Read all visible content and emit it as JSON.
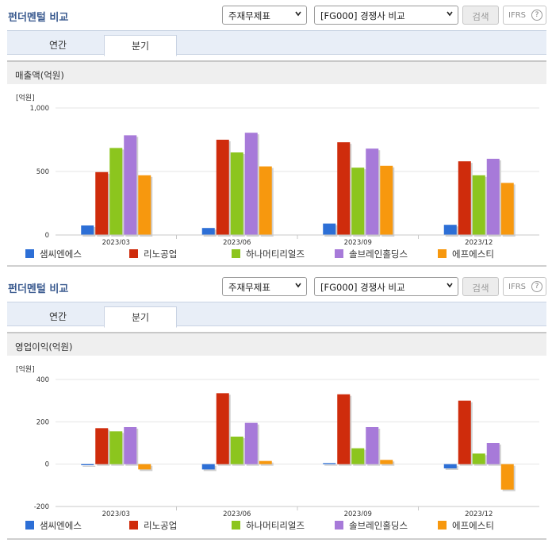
{
  "panels": [
    {
      "title": "펀더멘털 비교",
      "select1": "주재무제표",
      "select2": "[FG000] 경쟁사 비교",
      "search_label": "검색",
      "ifrs_label": "IFRS",
      "help_label": "?",
      "tabs": [
        "연간",
        "분기"
      ],
      "active_tab": 1,
      "subtitle": "매출액(억원)",
      "chart_data": {
        "type": "bar",
        "unit_label": "[억원]",
        "categories": [
          "2023/03",
          "2023/06",
          "2023/09",
          "2023/12"
        ],
        "ylim": [
          0,
          1000
        ],
        "yticks": [
          0,
          500,
          1000
        ],
        "ytick_labels": [
          "0",
          "500",
          "1,000"
        ],
        "grid": true,
        "series": [
          {
            "name": "샘씨엔에스",
            "values": [
              75,
              55,
              90,
              80
            ]
          },
          {
            "name": "리노공업",
            "values": [
              495,
              750,
              730,
              580
            ]
          },
          {
            "name": "하나머티리얼즈",
            "values": [
              685,
              650,
              530,
              470
            ]
          },
          {
            "name": "솔브레인홀딩스",
            "values": [
              785,
              805,
              680,
              600
            ]
          },
          {
            "name": "에프에스티",
            "values": [
              470,
              540,
              545,
              410
            ]
          }
        ]
      }
    },
    {
      "title": "펀더멘털 비교",
      "select1": "주재무제표",
      "select2": "[FG000] 경쟁사 비교",
      "search_label": "검색",
      "ifrs_label": "IFRS",
      "help_label": "?",
      "tabs": [
        "연간",
        "분기"
      ],
      "active_tab": 1,
      "subtitle": "영업이익(억원)",
      "chart_data": {
        "type": "bar",
        "unit_label": "[억원]",
        "categories": [
          "2023/03",
          "2023/06",
          "2023/09",
          "2023/12"
        ],
        "ylim": [
          -200,
          400
        ],
        "yticks": [
          -200,
          0,
          200,
          400
        ],
        "ytick_labels": [
          "-200",
          "0",
          "200",
          "400"
        ],
        "grid": true,
        "series": [
          {
            "name": "샘씨엔에스",
            "values": [
              -5,
              -25,
              5,
              -20
            ]
          },
          {
            "name": "리노공업",
            "values": [
              170,
              335,
              330,
              300
            ]
          },
          {
            "name": "하나머티리얼즈",
            "values": [
              155,
              130,
              75,
              50
            ]
          },
          {
            "name": "솔브레인홀딩스",
            "values": [
              175,
              195,
              175,
              100
            ]
          },
          {
            "name": "에프에스티",
            "values": [
              -25,
              15,
              20,
              -120
            ]
          }
        ]
      }
    }
  ],
  "legend_labels": [
    "샘씨엔에스",
    "리노공업",
    "하나머티리얼즈",
    "솔브레인홀딩스",
    "에프에스티"
  ],
  "colors": [
    "#2d6fd6",
    "#cf2c0c",
    "#8cc51e",
    "#a77ad9",
    "#f7980e"
  ]
}
